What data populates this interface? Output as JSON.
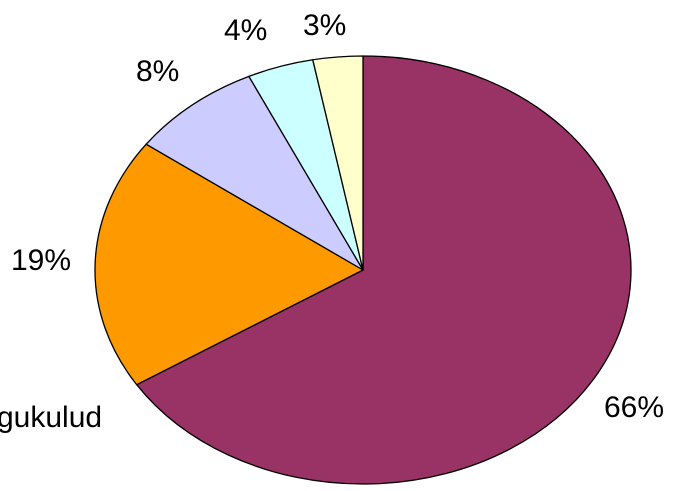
{
  "chart_data": {
    "type": "pie",
    "slices": [
      {
        "label": "66%",
        "value": 66,
        "color": "#993366"
      },
      {
        "label": "19%",
        "value": 19,
        "color": "#ff9900"
      },
      {
        "label": "8%",
        "value": 8,
        "color": "#ccccff"
      },
      {
        "label": "4%",
        "value": 4,
        "color": "#ccffff"
      },
      {
        "label": "3%",
        "value": 3,
        "color": "#ffffcc"
      }
    ],
    "legend_text_fragment": "gukulud",
    "start_angle": "12 o'clock",
    "direction": "clockwise",
    "legend": "left, partially visible"
  }
}
